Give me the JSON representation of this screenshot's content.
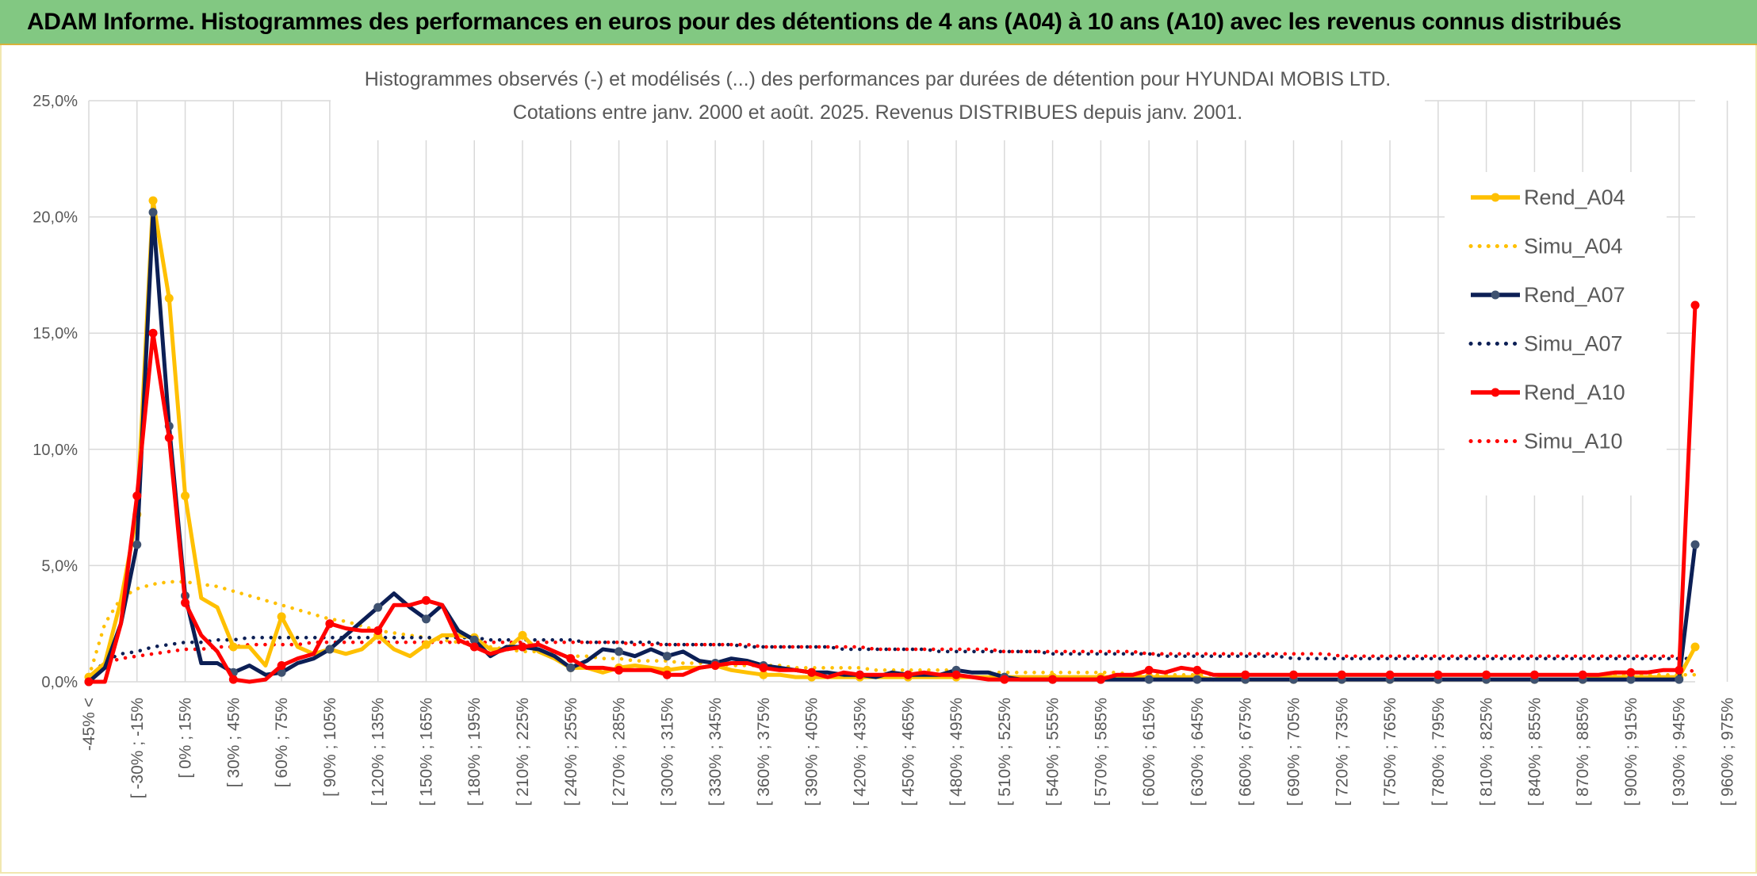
{
  "header": {
    "title": "ADAM Informe. Histogrammes des performances en euros pour des détentions de 4 ans (A04) à 10 ans (A10) avec les revenus connus distribués"
  },
  "colors": {
    "header_bg": "#82c882",
    "A04": "#ffc000",
    "A07": "#0c1f55",
    "A07_marker": "#3f5270",
    "A10": "#ff0000",
    "grid": "#d9d9d9",
    "axis_text": "#595959"
  },
  "chart_data": {
    "type": "line",
    "title": "Histogrammes observés (-) et modélisés (...) des performances par durées de détention pour HYUNDAI MOBIS LTD.",
    "subtitle": "Cotations entre janv. 2000 et août. 2025. Revenus DISTRIBUES depuis janv. 2001.",
    "ylim": [
      0,
      25
    ],
    "yticks": [
      0,
      5,
      10,
      15,
      20,
      25
    ],
    "ytick_labels": [
      "0,0%",
      "5,0%",
      "10,0%",
      "15,0%",
      "20,0%",
      "25,0%"
    ],
    "grid": true,
    "legend_position": "right",
    "x_tick_labels": [
      "-45% <",
      "[ -30% ; -15%",
      "[ 0% ; 15%",
      "[ 30% ; 45%",
      "[ 60% ; 75%",
      "[ 90% ; 105%",
      "[ 120% ; 135%",
      "[ 150% ; 165%",
      "[ 180% ; 195%",
      "[ 210% ; 225%",
      "[ 240% ; 255%",
      "[ 270% ; 285%",
      "[ 300% ; 315%",
      "[ 330% ; 345%",
      "[ 360% ; 375%",
      "[ 390% ; 405%",
      "[ 420% ; 435%",
      "[ 450% ; 465%",
      "[ 480% ; 495%",
      "[ 510% ; 525%",
      "[ 540% ; 555%",
      "[ 570% ; 585%",
      "[ 600% ; 615%",
      "[ 630% ; 645%",
      "[ 660% ; 675%",
      "[ 690% ; 705%",
      "[ 720% ; 735%",
      "[ 750% ; 765%",
      "[ 780% ; 795%",
      "[ 810% ; 825%",
      "[ 840% ; 855%",
      "[ 870% ; 885%",
      "[ 900% ; 915%",
      "[ 930% ; 945%",
      "[ 960% ; 975%"
    ],
    "series": [
      {
        "name": "Rend_A04",
        "style": "solid",
        "color": "#ffc000",
        "values": [
          0.2,
          0.8,
          3.5,
          7.2,
          20.7,
          16.5,
          8,
          3.6,
          3.2,
          1.5,
          1.5,
          0.7,
          2.8,
          1.5,
          1.2,
          1.4,
          1.2,
          1.4,
          2,
          1.4,
          1.1,
          1.6,
          2,
          2,
          1.9,
          1.4,
          1.4,
          2,
          1.3,
          1,
          0.6,
          0.6,
          0.4,
          0.6,
          0.7,
          0.6,
          0.5,
          0.6,
          0.6,
          0.7,
          0.5,
          0.4,
          0.3,
          0.3,
          0.2,
          0.2,
          0.2,
          0.2,
          0.2,
          0.2,
          0.2,
          0.2,
          0.2,
          0.2,
          0.2,
          0.2,
          0.2,
          0.2,
          0.2,
          0.2,
          0.2,
          0.2,
          0.2,
          0.2,
          0.2,
          0.2,
          0.2,
          0.2,
          0.2,
          0.2,
          0.1,
          0.2,
          0.1,
          0.1,
          0.1,
          0.1,
          0.1,
          0.1,
          0.1,
          0.1,
          0.1,
          0.1,
          0.1,
          0.1,
          0.1,
          0.1,
          0.1,
          0.1,
          0.1,
          0.1,
          0.1,
          0.1,
          0.1,
          0.1,
          0.2,
          0.2,
          0.2,
          0.2,
          0.2,
          0.2,
          1.5
        ]
      },
      {
        "name": "Simu_A04",
        "style": "dotted",
        "color": "#ffc000",
        "values": [
          0.2,
          2.5,
          3.6,
          4,
          4.2,
          4.3,
          4.3,
          4.2,
          4.1,
          3.9,
          3.7,
          3.5,
          3.3,
          3.1,
          2.9,
          2.7,
          2.6,
          2.4,
          2.2,
          2.1,
          2,
          1.9,
          1.8,
          1.7,
          1.6,
          1.5,
          1.4,
          1.3,
          1.3,
          1.2,
          1.1,
          1.1,
          1,
          1,
          0.9,
          0.9,
          0.9,
          0.8,
          0.8,
          0.8,
          0.7,
          0.7,
          0.7,
          0.7,
          0.6,
          0.6,
          0.6,
          0.6,
          0.6,
          0.5,
          0.5,
          0.5,
          0.5,
          0.5,
          0.5,
          0.4,
          0.4,
          0.4,
          0.4,
          0.4,
          0.4,
          0.4,
          0.4,
          0.4,
          0.4,
          0.3,
          0.3,
          0.3,
          0.3,
          0.3,
          0.3,
          0.3,
          0.3,
          0.3,
          0.3,
          0.3,
          0.3,
          0.3,
          0.3,
          0.3,
          0.3,
          0.3,
          0.3,
          0.3,
          0.3,
          0.3,
          0.3,
          0.3,
          0.3,
          0.3,
          0.3,
          0.3,
          0.3,
          0.3,
          0.3,
          0.3,
          0.3,
          0.3,
          0.3,
          0.3,
          0.3
        ]
      },
      {
        "name": "Rend_A07",
        "style": "solid",
        "color": "#0c1f55",
        "values": [
          0,
          0.6,
          2.5,
          5.9,
          20.2,
          11,
          3.7,
          0.8,
          0.8,
          0.4,
          0.7,
          0.3,
          0.4,
          0.8,
          1,
          1.4,
          2,
          2.6,
          3.2,
          3.8,
          3.2,
          2.7,
          3.3,
          2.2,
          1.8,
          1.1,
          1.5,
          1.5,
          1.4,
          1.1,
          0.6,
          0.9,
          1.4,
          1.3,
          1.1,
          1.4,
          1.1,
          1.3,
          0.9,
          0.8,
          1,
          0.9,
          0.7,
          0.6,
          0.5,
          0.4,
          0.4,
          0.3,
          0.3,
          0.2,
          0.4,
          0.3,
          0.3,
          0.3,
          0.5,
          0.4,
          0.4,
          0.2,
          0.1,
          0.1,
          0.1,
          0.1,
          0.1,
          0.1,
          0.1,
          0.1,
          0.1,
          0.1,
          0.1,
          0.1,
          0.1,
          0.1,
          0.1,
          0.1,
          0.1,
          0.1,
          0.1,
          0.1,
          0.1,
          0.1,
          0.1,
          0.1,
          0.1,
          0.1,
          0.1,
          0.1,
          0.1,
          0.1,
          0.1,
          0.1,
          0.1,
          0.1,
          0.1,
          0.1,
          0.1,
          0.1,
          0.1,
          0.1,
          0.1,
          0.1,
          5.9
        ]
      },
      {
        "name": "Simu_A07",
        "style": "dotted",
        "color": "#0c1f55",
        "values": [
          0.1,
          0.9,
          1.2,
          1.3,
          1.5,
          1.6,
          1.7,
          1.7,
          1.8,
          1.8,
          1.9,
          1.9,
          1.9,
          1.9,
          1.9,
          1.9,
          1.9,
          1.9,
          1.9,
          1.9,
          1.9,
          1.9,
          1.9,
          1.9,
          1.9,
          1.8,
          1.8,
          1.8,
          1.8,
          1.8,
          1.8,
          1.7,
          1.7,
          1.7,
          1.7,
          1.7,
          1.6,
          1.6,
          1.6,
          1.6,
          1.6,
          1.5,
          1.5,
          1.5,
          1.5,
          1.5,
          1.5,
          1.4,
          1.4,
          1.4,
          1.4,
          1.4,
          1.4,
          1.3,
          1.3,
          1.3,
          1.3,
          1.3,
          1.3,
          1.3,
          1.2,
          1.2,
          1.2,
          1.2,
          1.2,
          1.2,
          1.2,
          1.1,
          1.1,
          1.1,
          1.1,
          1.1,
          1.1,
          1.1,
          1.1,
          1,
          1,
          1,
          1,
          1,
          1,
          1,
          1,
          1,
          1,
          1,
          1,
          1,
          1,
          1,
          1,
          1,
          1,
          1,
          1,
          1,
          1,
          1,
          1,
          1,
          1
        ]
      },
      {
        "name": "Rend_A10",
        "style": "solid",
        "color": "#ff0000",
        "values": [
          0,
          0,
          2.5,
          8,
          15,
          10.5,
          3.4,
          2,
          1.3,
          0.1,
          0,
          0.1,
          0.7,
          1,
          1.2,
          2.5,
          2.3,
          2.2,
          2.2,
          3.3,
          3.3,
          3.5,
          3.3,
          1.8,
          1.5,
          1.2,
          1.4,
          1.5,
          1.6,
          1.3,
          1,
          0.6,
          0.6,
          0.5,
          0.5,
          0.5,
          0.3,
          0.3,
          0.6,
          0.7,
          0.8,
          0.8,
          0.6,
          0.5,
          0.5,
          0.4,
          0.2,
          0.4,
          0.3,
          0.3,
          0.3,
          0.3,
          0.4,
          0.3,
          0.3,
          0.2,
          0.1,
          0.1,
          0.1,
          0.1,
          0.1,
          0.1,
          0.1,
          0.1,
          0.3,
          0.3,
          0.5,
          0.4,
          0.6,
          0.5,
          0.3,
          0.3,
          0.3,
          0.3,
          0.3,
          0.3,
          0.3,
          0.3,
          0.3,
          0.3,
          0.3,
          0.3,
          0.3,
          0.3,
          0.3,
          0.3,
          0.3,
          0.3,
          0.3,
          0.3,
          0.3,
          0.3,
          0.3,
          0.3,
          0.3,
          0.4,
          0.4,
          0.4,
          0.5,
          0.5,
          16.2
        ]
      },
      {
        "name": "Simu_A10",
        "style": "dotted",
        "color": "#ff0000",
        "values": [
          0.1,
          0.8,
          1,
          1.1,
          1.2,
          1.3,
          1.4,
          1.4,
          1.5,
          1.5,
          1.6,
          1.6,
          1.6,
          1.6,
          1.7,
          1.7,
          1.7,
          1.7,
          1.7,
          1.7,
          1.7,
          1.7,
          1.7,
          1.7,
          1.7,
          1.7,
          1.7,
          1.7,
          1.7,
          1.7,
          1.7,
          1.7,
          1.7,
          1.7,
          1.6,
          1.6,
          1.6,
          1.6,
          1.6,
          1.6,
          1.6,
          1.6,
          1.5,
          1.5,
          1.5,
          1.5,
          1.5,
          1.5,
          1.5,
          1.4,
          1.4,
          1.4,
          1.4,
          1.4,
          1.4,
          1.4,
          1.4,
          1.3,
          1.3,
          1.3,
          1.3,
          1.3,
          1.3,
          1.3,
          1.3,
          1.3,
          1.2,
          1.2,
          1.2,
          1.2,
          1.2,
          1.2,
          1.2,
          1.2,
          1.2,
          1.2,
          1.2,
          1.2,
          1.1,
          1.1,
          1.1,
          1.1,
          1.1,
          1.1,
          1.1,
          1.1,
          1.1,
          1.1,
          1.1,
          1.1,
          1.1,
          1.1,
          1.1,
          1.1,
          1.1,
          1.1,
          1.1,
          1.1,
          1.1,
          1.1,
          0.3
        ]
      }
    ]
  }
}
